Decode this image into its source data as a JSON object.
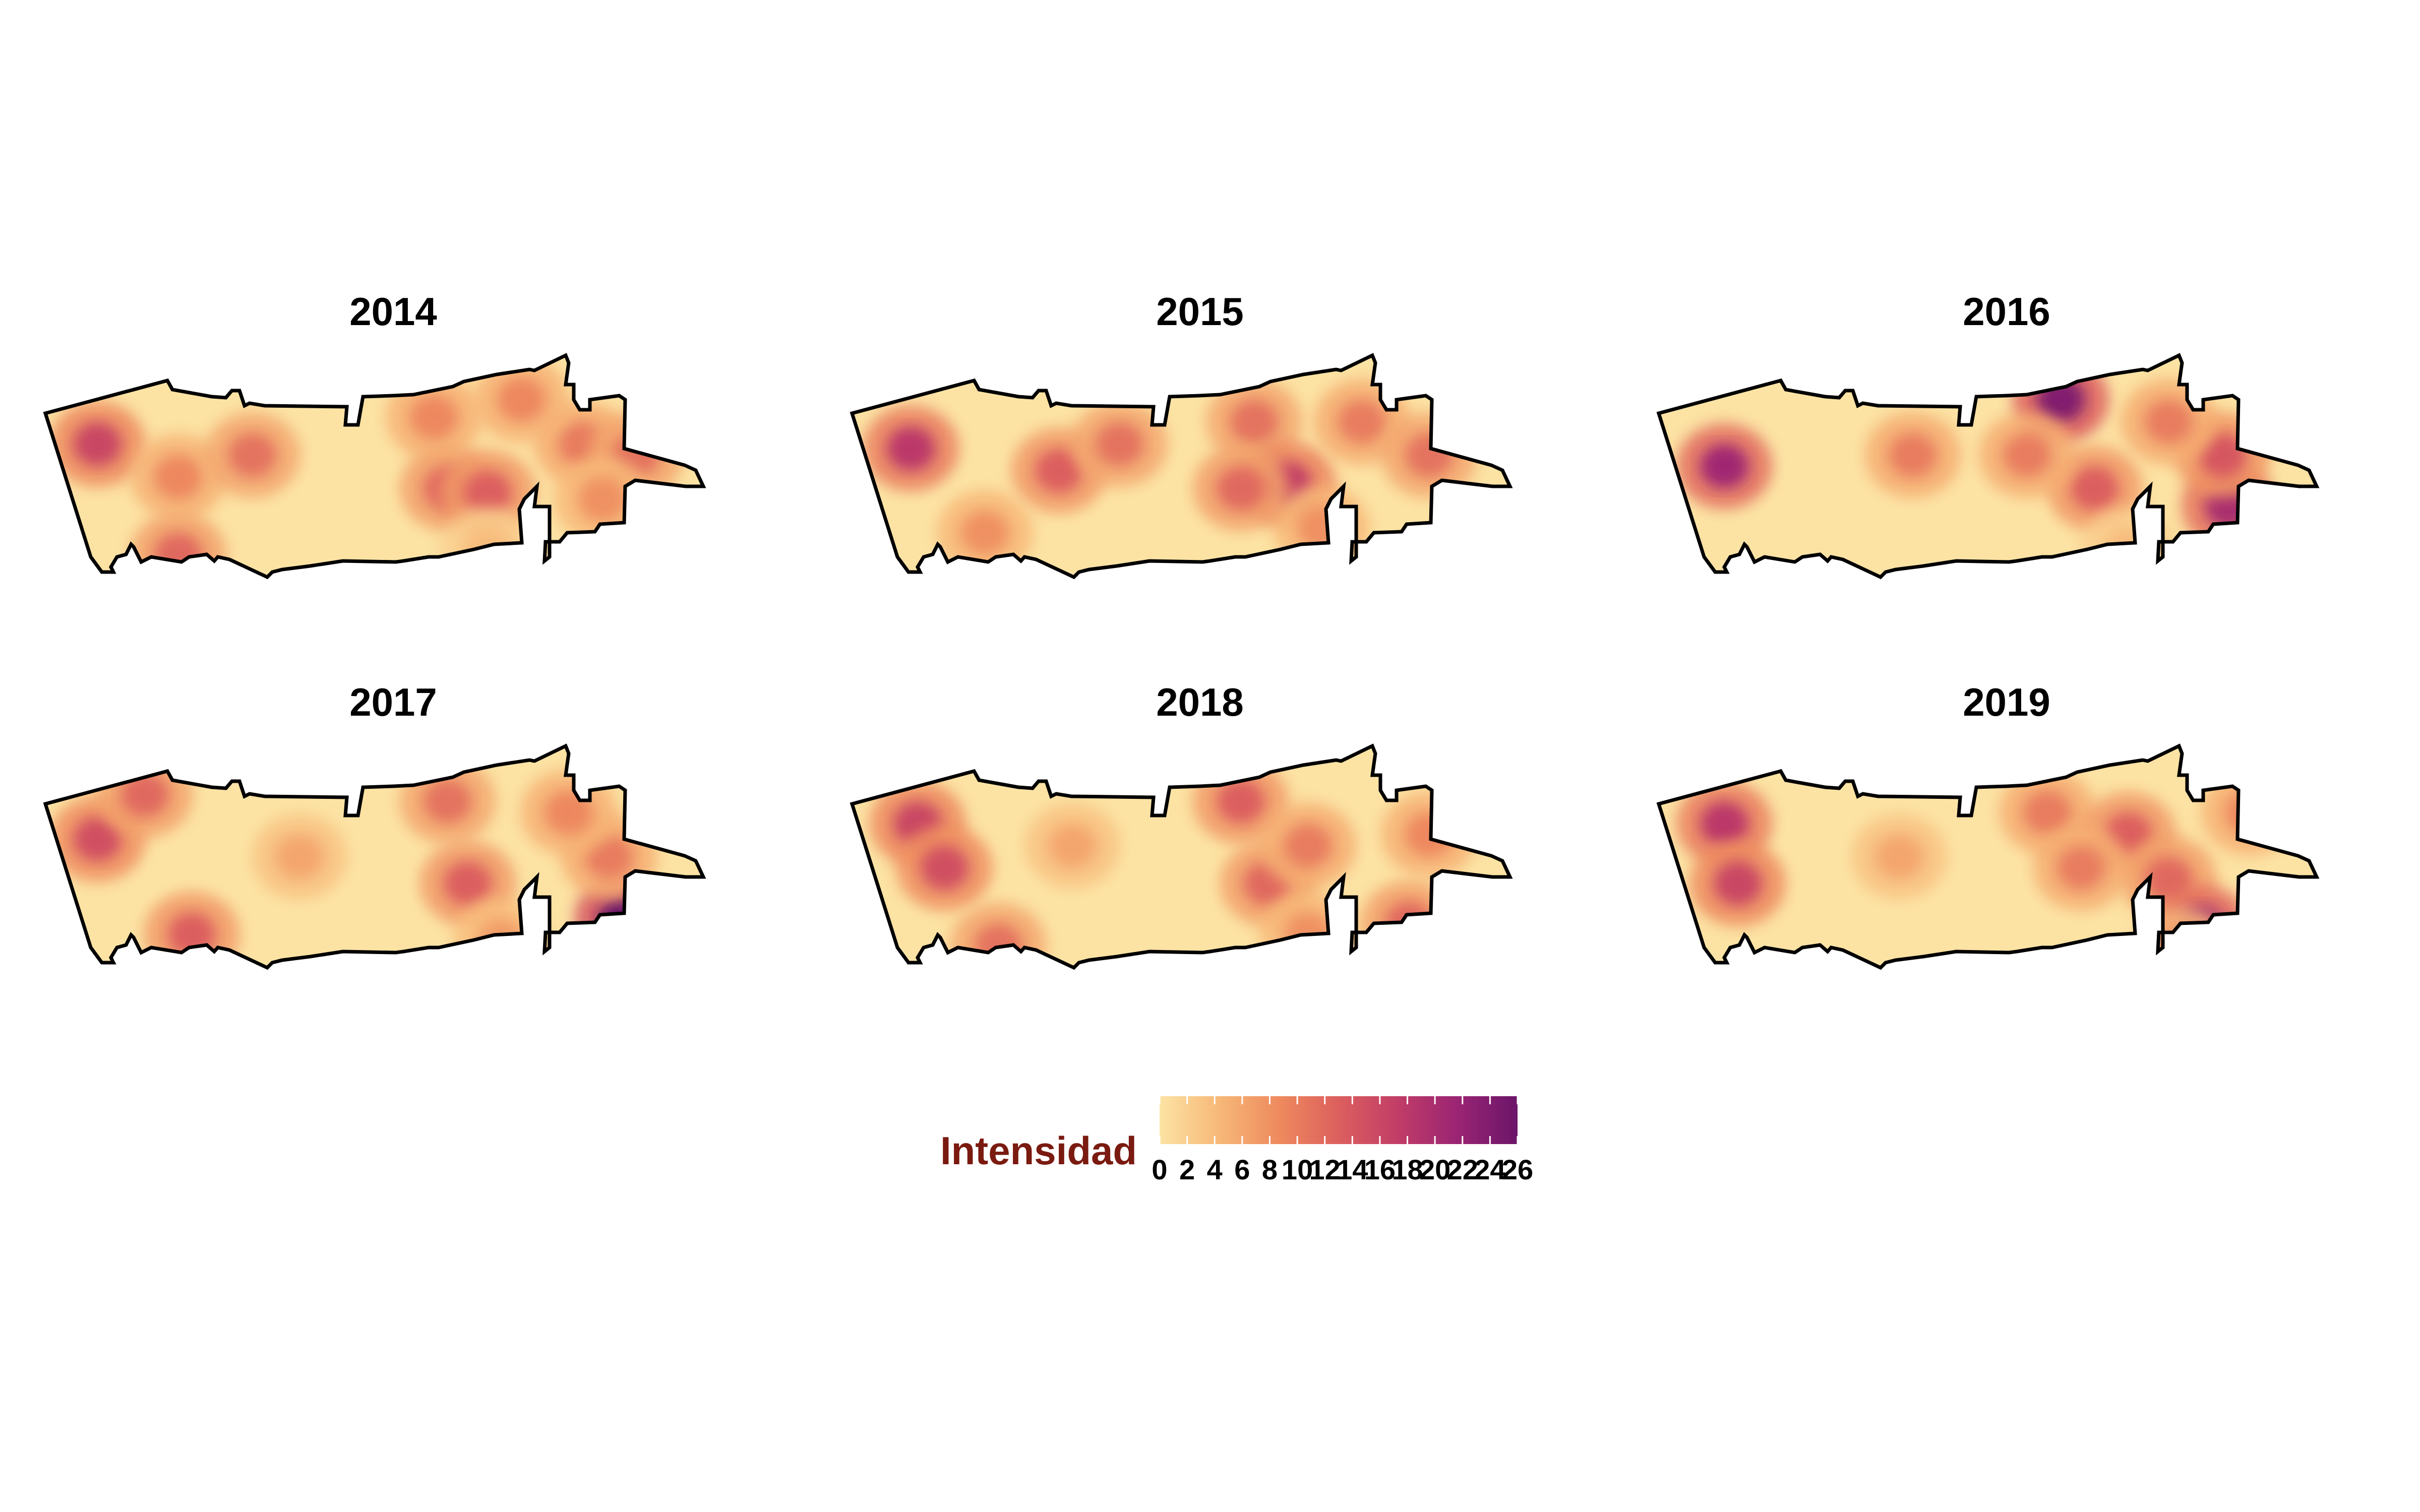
{
  "chart_data": {
    "type": "heatmap",
    "panels": [
      {
        "title": "2014",
        "hotspots": [
          {
            "x": 0.1,
            "y": 0.4,
            "v": 16
          },
          {
            "x": 0.22,
            "y": 0.55,
            "v": 9
          },
          {
            "x": 0.33,
            "y": 0.45,
            "v": 11
          },
          {
            "x": 0.22,
            "y": 0.9,
            "v": 12
          },
          {
            "x": 0.6,
            "y": 0.28,
            "v": 9
          },
          {
            "x": 0.62,
            "y": 0.6,
            "v": 12
          },
          {
            "x": 0.68,
            "y": 0.62,
            "v": 13
          },
          {
            "x": 0.82,
            "y": 0.4,
            "v": 10
          },
          {
            "x": 0.9,
            "y": 0.45,
            "v": 11
          },
          {
            "x": 0.73,
            "y": 0.2,
            "v": 9
          },
          {
            "x": 0.68,
            "y": 0.88,
            "v": 4
          },
          {
            "x": 0.85,
            "y": 0.65,
            "v": 8
          }
        ]
      },
      {
        "title": "2015",
        "hotspots": [
          {
            "x": 0.11,
            "y": 0.42,
            "v": 18
          },
          {
            "x": 0.33,
            "y": 0.52,
            "v": 13
          },
          {
            "x": 0.42,
            "y": 0.4,
            "v": 11
          },
          {
            "x": 0.62,
            "y": 0.3,
            "v": 11
          },
          {
            "x": 0.67,
            "y": 0.58,
            "v": 17
          },
          {
            "x": 0.6,
            "y": 0.6,
            "v": 12
          },
          {
            "x": 0.78,
            "y": 0.3,
            "v": 10
          },
          {
            "x": 0.88,
            "y": 0.45,
            "v": 11
          },
          {
            "x": 0.22,
            "y": 0.8,
            "v": 8
          },
          {
            "x": 0.72,
            "y": 0.78,
            "v": 8
          }
        ]
      },
      {
        "title": "2016",
        "hotspots": [
          {
            "x": 0.12,
            "y": 0.5,
            "v": 21
          },
          {
            "x": 0.4,
            "y": 0.45,
            "v": 10
          },
          {
            "x": 0.62,
            "y": 0.2,
            "v": 24
          },
          {
            "x": 0.67,
            "y": 0.6,
            "v": 13
          },
          {
            "x": 0.87,
            "y": 0.68,
            "v": 20
          },
          {
            "x": 0.86,
            "y": 0.45,
            "v": 14
          },
          {
            "x": 0.78,
            "y": 0.3,
            "v": 10
          },
          {
            "x": 0.57,
            "y": 0.45,
            "v": 10
          },
          {
            "x": 0.72,
            "y": 0.88,
            "v": 4
          }
        ]
      },
      {
        "title": "2017",
        "hotspots": [
          {
            "x": 0.1,
            "y": 0.42,
            "v": 15
          },
          {
            "x": 0.17,
            "y": 0.22,
            "v": 12
          },
          {
            "x": 0.24,
            "y": 0.85,
            "v": 13
          },
          {
            "x": 0.4,
            "y": 0.5,
            "v": 6
          },
          {
            "x": 0.62,
            "y": 0.25,
            "v": 11
          },
          {
            "x": 0.65,
            "y": 0.62,
            "v": 13
          },
          {
            "x": 0.88,
            "y": 0.78,
            "v": 26
          },
          {
            "x": 0.86,
            "y": 0.5,
            "v": 10
          },
          {
            "x": 0.8,
            "y": 0.3,
            "v": 9
          },
          {
            "x": 0.7,
            "y": 0.88,
            "v": 7
          }
        ]
      },
      {
        "title": "2018",
        "hotspots": [
          {
            "x": 0.12,
            "y": 0.35,
            "v": 16
          },
          {
            "x": 0.16,
            "y": 0.55,
            "v": 15
          },
          {
            "x": 0.24,
            "y": 0.9,
            "v": 11
          },
          {
            "x": 0.35,
            "y": 0.45,
            "v": 6
          },
          {
            "x": 0.6,
            "y": 0.25,
            "v": 13
          },
          {
            "x": 0.64,
            "y": 0.62,
            "v": 12
          },
          {
            "x": 0.7,
            "y": 0.45,
            "v": 10
          },
          {
            "x": 0.85,
            "y": 0.8,
            "v": 12
          },
          {
            "x": 0.88,
            "y": 0.4,
            "v": 9
          },
          {
            "x": 0.7,
            "y": 0.85,
            "v": 8
          }
        ]
      },
      {
        "title": "2019",
        "hotspots": [
          {
            "x": 0.12,
            "y": 0.35,
            "v": 18
          },
          {
            "x": 0.14,
            "y": 0.62,
            "v": 16
          },
          {
            "x": 0.38,
            "y": 0.5,
            "v": 6
          },
          {
            "x": 0.6,
            "y": 0.3,
            "v": 10
          },
          {
            "x": 0.72,
            "y": 0.4,
            "v": 13
          },
          {
            "x": 0.78,
            "y": 0.6,
            "v": 12
          },
          {
            "x": 0.83,
            "y": 0.82,
            "v": 21
          },
          {
            "x": 0.9,
            "y": 0.3,
            "v": 9
          },
          {
            "x": 0.65,
            "y": 0.55,
            "v": 10
          },
          {
            "x": 0.8,
            "y": 0.92,
            "v": 8
          }
        ]
      }
    ],
    "legend": {
      "title": "Intensidad",
      "min": 0,
      "max": 26,
      "tick_labels": [
        "0",
        "2",
        "4",
        "6",
        "8",
        "10",
        "12",
        "14",
        "16",
        "18",
        "20",
        "22",
        "24",
        "26"
      ],
      "colors": [
        "#fce3a4",
        "#f7b878",
        "#ee8a5e",
        "#dc5f5e",
        "#c13d67",
        "#9a2474",
        "#6b1569"
      ]
    },
    "outline_color": "#000000",
    "legend_title_color": "#7a1a10"
  }
}
